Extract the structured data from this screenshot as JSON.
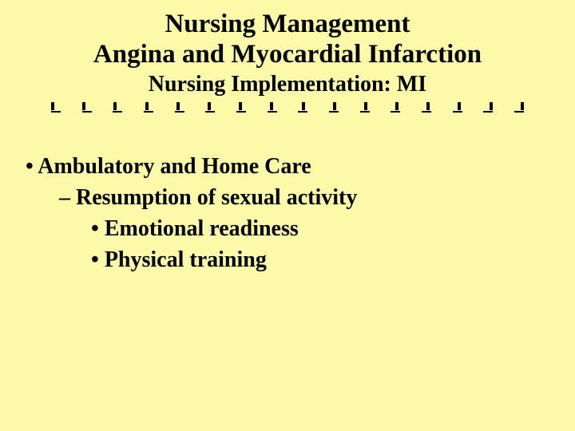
{
  "slide": {
    "background_color": "#fcfaa8",
    "text_color": "#000000",
    "font_family": "Georgia, Times New Roman, serif",
    "title_fontsize": 33,
    "subtitle_fontsize": 28,
    "body_fontsize": 28,
    "title_line1": "Nursing Management",
    "title_line2": "Angina and Myocardial Infarction",
    "subtitle": "Nursing Implementation: MI",
    "divider": {
      "tick_count": 16,
      "tick_color": "#000000"
    },
    "bullets": {
      "l1": "Ambulatory and Home Care",
      "l2": "Resumption of sexual activity",
      "l3a": "Emotional readiness",
      "l3b": "Physical training"
    }
  }
}
